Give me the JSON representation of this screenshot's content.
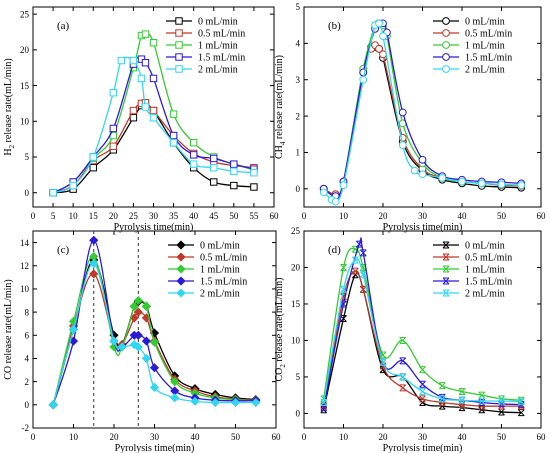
{
  "legend_labels": [
    "0 mL/min",
    "0.5 mL/min",
    "1 mL/min",
    "1.5 mL/min",
    "2 mL/min"
  ],
  "colors": [
    "#000000",
    "#c0392b",
    "#33cc33",
    "#2b1bd6",
    "#33d6f0"
  ],
  "chart_data": [
    {
      "type": "line",
      "panel_label": "(a)",
      "xlabel": "Pyrolysis time(min)",
      "ylabel_parts": [
        "H",
        "2",
        " release rate(mL/min)"
      ],
      "xlim": [
        0,
        60
      ],
      "ylim": [
        -2,
        26
      ],
      "xticks": [
        0,
        5,
        10,
        15,
        20,
        25,
        30,
        35,
        40,
        45,
        50,
        55,
        60
      ],
      "yticks": [
        0,
        5,
        10,
        15,
        20,
        25
      ],
      "marker_x": [
        5,
        10,
        15,
        20,
        25,
        27,
        28,
        30,
        35,
        40,
        45,
        50,
        55
      ],
      "series": [
        {
          "name": "0 mL/min",
          "marker": "square",
          "x": [
            5,
            10,
            15,
            20,
            25,
            27,
            28,
            30,
            35,
            40,
            45,
            50,
            55
          ],
          "y": [
            0,
            0.5,
            3.5,
            6,
            10.5,
            12.2,
            12.4,
            11.5,
            7,
            3.5,
            1.5,
            1,
            0.8
          ]
        },
        {
          "name": "0.5 mL/min",
          "marker": "square",
          "x": [
            5,
            10,
            15,
            20,
            25,
            27,
            28,
            30,
            35,
            40,
            45,
            50,
            55
          ],
          "y": [
            0,
            1,
            4.5,
            6.5,
            11.5,
            12.5,
            12.6,
            11.5,
            8,
            5.5,
            4.3,
            3.8,
            3.5
          ]
        },
        {
          "name": "1 mL/min",
          "marker": "square",
          "x": [
            5,
            10,
            15,
            20,
            25,
            27,
            28,
            30,
            35,
            40,
            45,
            50,
            55
          ],
          "y": [
            0,
            1.5,
            4.8,
            8,
            17.5,
            22,
            22.2,
            21,
            11,
            7,
            5,
            4,
            3.2
          ]
        },
        {
          "name": "1.5 mL/min",
          "marker": "square",
          "x": [
            5,
            10,
            15,
            20,
            25,
            27,
            28,
            30,
            35,
            40,
            45,
            50,
            55
          ],
          "y": [
            0,
            1.5,
            5,
            9,
            18,
            18.7,
            18.2,
            16,
            8,
            5.3,
            4.8,
            4,
            3.3
          ]
        },
        {
          "name": "2 mL/min",
          "marker": "square",
          "x": [
            5,
            10,
            15,
            20,
            22,
            25,
            27,
            28,
            30,
            35,
            40,
            45,
            50,
            55
          ],
          "y": [
            0,
            1,
            5,
            14,
            18.5,
            18.5,
            16,
            12,
            10.5,
            7,
            4,
            3.5,
            3,
            2.8
          ]
        }
      ]
    },
    {
      "type": "line",
      "panel_label": "(b)",
      "xlabel": "Pyrolysis time(min)",
      "ylabel_parts": [
        "CH",
        "4",
        " release rate(mL/min)"
      ],
      "xlim": [
        0,
        60
      ],
      "ylim": [
        -0.5,
        5
      ],
      "xticks": [
        0,
        10,
        20,
        30,
        40,
        50,
        60
      ],
      "yticks": [
        0,
        1,
        2,
        3,
        4,
        5
      ],
      "series": [
        {
          "name": "0 mL/min",
          "marker": "circle",
          "x": [
            5,
            8,
            10,
            15,
            17,
            18,
            19,
            20,
            25,
            30,
            35,
            40,
            45,
            50,
            55
          ],
          "y": [
            0,
            -0.15,
            0.2,
            3.2,
            3.9,
            3.9,
            3.85,
            3.6,
            1.3,
            0.5,
            0.25,
            0.15,
            0.08,
            0.05,
            0.03
          ]
        },
        {
          "name": "0.5 mL/min",
          "marker": "circle",
          "x": [
            5,
            8,
            10,
            15,
            17,
            18,
            19,
            20,
            25,
            30,
            35,
            40,
            45,
            50,
            55
          ],
          "y": [
            0,
            -0.15,
            0.2,
            3.3,
            3.85,
            3.95,
            3.85,
            3.7,
            1.4,
            0.55,
            0.3,
            0.2,
            0.15,
            0.1,
            0.08
          ]
        },
        {
          "name": "1 mL/min",
          "marker": "circle",
          "x": [
            5,
            8,
            10,
            15,
            18,
            19,
            20,
            21,
            25,
            30,
            35,
            40,
            45,
            50,
            55
          ],
          "y": [
            0,
            -0.2,
            0.2,
            3.3,
            4.5,
            4.55,
            4.5,
            4.2,
            1.8,
            0.7,
            0.3,
            0.2,
            0.15,
            0.12,
            0.1
          ]
        },
        {
          "name": "1.5 mL/min",
          "marker": "circle",
          "x": [
            5,
            8,
            10,
            15,
            18,
            19,
            20,
            21,
            25,
            30,
            35,
            40,
            45,
            50,
            55
          ],
          "y": [
            0,
            -0.2,
            0.2,
            3.2,
            4.4,
            4.55,
            4.55,
            4.3,
            2.1,
            0.8,
            0.35,
            0.25,
            0.2,
            0.18,
            0.15
          ]
        },
        {
          "name": "2 mL/min",
          "marker": "circle",
          "x": [
            5,
            7,
            8,
            10,
            15,
            18,
            19,
            20,
            25,
            28,
            30,
            35,
            40,
            45,
            50,
            55
          ],
          "y": [
            -0.1,
            -0.3,
            -0.35,
            0.1,
            3,
            4.5,
            4.55,
            4.2,
            1.2,
            0.5,
            0.4,
            0.3,
            0.2,
            0.15,
            0.12,
            0.1
          ]
        }
      ]
    },
    {
      "type": "line",
      "panel_label": "(c)",
      "xlabel": "Pyrolysis time(min)",
      "ylabel_parts": [
        "CO release rate(mL/min)"
      ],
      "xlim": [
        0,
        60
      ],
      "ylim": [
        -2,
        15
      ],
      "xticks": [
        0,
        10,
        20,
        30,
        40,
        50,
        60
      ],
      "yticks": [
        -2,
        0,
        2,
        4,
        6,
        8,
        10,
        12,
        14
      ],
      "vlines": [
        15,
        26
      ],
      "series": [
        {
          "name": "0 mL/min",
          "marker": "diamond",
          "x": [
            5,
            10,
            15,
            20,
            22,
            25,
            26,
            28,
            30,
            35,
            40,
            45,
            50,
            55
          ],
          "y": [
            0,
            6.5,
            12.5,
            6,
            5.2,
            8.5,
            8.9,
            8.5,
            6.2,
            2.5,
            1.4,
            0.9,
            0.6,
            0.45
          ]
        },
        {
          "name": "0.5 mL/min",
          "marker": "diamond",
          "x": [
            5,
            10,
            15,
            20,
            22,
            25,
            26,
            28,
            30,
            35,
            40,
            45,
            50,
            55
          ],
          "y": [
            0,
            6.8,
            11.3,
            5.5,
            5.2,
            7.5,
            8,
            7.5,
            5.5,
            2.2,
            1.2,
            0.7,
            0.5,
            0.4
          ]
        },
        {
          "name": "1 mL/min",
          "marker": "diamond",
          "x": [
            5,
            10,
            15,
            20,
            22,
            25,
            26,
            28,
            30,
            35,
            40,
            45,
            50,
            55
          ],
          "y": [
            0,
            7.2,
            12.8,
            5,
            5,
            8.5,
            9,
            8.5,
            5.4,
            2,
            1,
            0.6,
            0.45,
            0.35
          ]
        },
        {
          "name": "1.5 mL/min",
          "marker": "diamond",
          "x": [
            5,
            10,
            15,
            20,
            22,
            25,
            26,
            28,
            30,
            35,
            40,
            45,
            50,
            55
          ],
          "y": [
            0,
            5.5,
            14.2,
            5.5,
            5,
            6,
            6,
            5.5,
            3.2,
            1.2,
            0.6,
            0.4,
            0.35,
            0.35
          ]
        },
        {
          "name": "2 mL/min",
          "marker": "diamond",
          "x": [
            5,
            10,
            15,
            20,
            22,
            25,
            26,
            28,
            30,
            35,
            40,
            45,
            50,
            55
          ],
          "y": [
            0,
            6.5,
            12.2,
            5.5,
            5,
            5.2,
            5,
            4,
            1.5,
            0.6,
            0.3,
            0.2,
            0.2,
            0.2
          ]
        }
      ]
    },
    {
      "type": "line",
      "panel_label": "(d)",
      "xlabel": "Pyrolysis time(min)",
      "ylabel_parts": [
        "CO",
        "2",
        " release rate(mL/min)"
      ],
      "xlim": [
        0,
        60
      ],
      "ylim": [
        -2,
        25
      ],
      "xticks": [
        0,
        10,
        20,
        30,
        40,
        50,
        60
      ],
      "yticks": [
        0,
        5,
        10,
        15,
        20,
        25
      ],
      "series": [
        {
          "name": "0 mL/min",
          "marker": "x",
          "x": [
            5,
            10,
            13,
            15,
            20,
            25,
            30,
            35,
            40,
            45,
            50,
            55
          ],
          "y": [
            0.5,
            13,
            19,
            17,
            6,
            5,
            1.5,
            1,
            0.8,
            0.5,
            0.2,
            0.1
          ]
        },
        {
          "name": "0.5 mL/min",
          "marker": "x",
          "x": [
            5,
            10,
            13,
            15,
            20,
            25,
            30,
            35,
            40,
            45,
            50,
            55
          ],
          "y": [
            1,
            16,
            19.5,
            17,
            6.5,
            3.5,
            2,
            1.5,
            1.2,
            1,
            1,
            1
          ]
        },
        {
          "name": "1 mL/min",
          "marker": "x",
          "x": [
            5,
            10,
            13,
            15,
            20,
            25,
            30,
            35,
            40,
            45,
            50,
            55
          ],
          "y": [
            2,
            20,
            22.5,
            20,
            8,
            10,
            6,
            3.8,
            3,
            2.5,
            2,
            1.8
          ]
        },
        {
          "name": "1.5 mL/min",
          "marker": "x",
          "x": [
            5,
            10,
            14,
            15,
            20,
            25,
            30,
            35,
            40,
            45,
            50,
            55
          ],
          "y": [
            0.8,
            15,
            23.2,
            22,
            7,
            7.2,
            4,
            2.2,
            1.8,
            1.5,
            1.3,
            1.2
          ]
        },
        {
          "name": "2 mL/min",
          "marker": "x",
          "x": [
            5,
            10,
            13,
            15,
            20,
            25,
            30,
            35,
            40,
            45,
            50,
            55
          ],
          "y": [
            1.5,
            17,
            21,
            19,
            7,
            5,
            3,
            2,
            1.8,
            1.7,
            1.7,
            1.6
          ]
        }
      ]
    }
  ]
}
